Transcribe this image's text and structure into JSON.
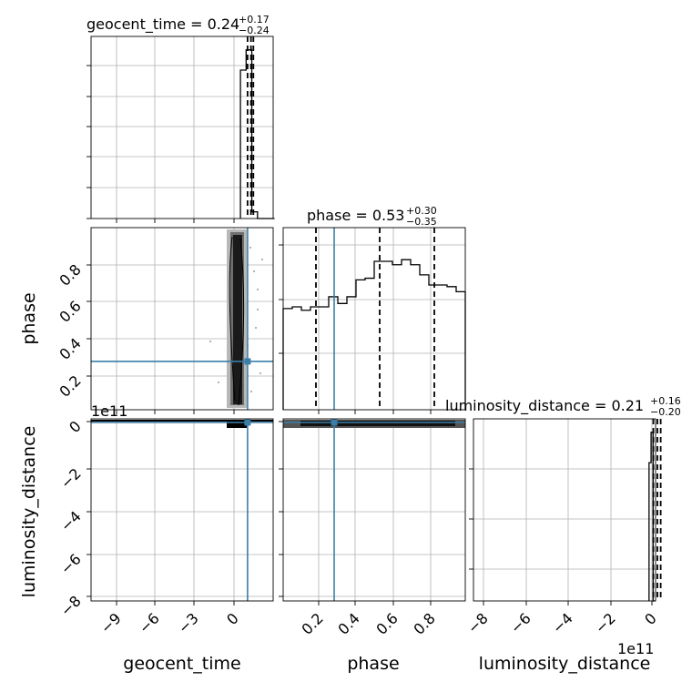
{
  "titles": {
    "geocent_time": {
      "main": "geocent_time = 0.24",
      "sup": "+0.17",
      "sub": "−0.24"
    },
    "phase": {
      "main": "phase = 0.53",
      "sup": "+0.30",
      "sub": "−0.35"
    },
    "luminosity_distance": {
      "main": "luminosity_distance = 0.21",
      "sup": "+0.16",
      "sub": "−0.20"
    }
  },
  "axis_labels": {
    "geocent_time": "geocent_time",
    "phase": "phase",
    "luminosity_distance": "luminosity_distance"
  },
  "offset_texts": {
    "row3_y": "1e11",
    "col3_x": "1e11"
  },
  "colors": {
    "truth": "#3b7ea8",
    "hist": "#000000",
    "grid": "#b0b0b0",
    "density_dark": "#1a1a1a",
    "density_mid": "#6e6e6e",
    "density_light": "#b8b8b8"
  },
  "chart_data": [
    {
      "type": "bar",
      "panel": "geocent_time marginal histogram",
      "x": [
        -0.5,
        -0.1,
        0.3,
        0.7,
        1.1,
        1.5
      ],
      "values": [
        0.88,
        1.0,
        0.04,
        0.0,
        0.0,
        0.0
      ],
      "quantiles": [
        0.0,
        0.24,
        0.41
      ],
      "xlim": [
        -11,
        1.8
      ]
    },
    {
      "type": "bar",
      "panel": "phase marginal histogram",
      "x": [
        0.0,
        0.05,
        0.1,
        0.15,
        0.2,
        0.25,
        0.3,
        0.35,
        0.4,
        0.45,
        0.5,
        0.55,
        0.6,
        0.65,
        0.7,
        0.75,
        0.8,
        0.85,
        0.9,
        0.95
      ],
      "values": [
        0.6,
        0.61,
        0.59,
        0.61,
        0.61,
        0.67,
        0.63,
        0.67,
        0.77,
        0.78,
        0.88,
        0.88,
        0.86,
        0.89,
        0.86,
        0.8,
        0.74,
        0.74,
        0.73,
        0.7
      ],
      "quantiles": [
        0.18,
        0.53,
        0.83
      ],
      "truth": 0.28,
      "xlim": [
        0.0,
        1.0
      ],
      "xticks": [
        "0.2",
        "0.4",
        "0.6",
        "0.8"
      ]
    },
    {
      "type": "bar",
      "panel": "luminosity_distance marginal histogram",
      "x": [
        -0.2,
        -0.1,
        0.0
      ],
      "values": [
        0.82,
        1.0,
        0.0
      ],
      "quantiles": [
        0.01,
        0.21,
        0.37
      ],
      "xlim": [
        -8.8,
        0.12
      ],
      "xticks": [
        "−8",
        "−6",
        "−4",
        "−2",
        "0"
      ]
    },
    {
      "type": "heatmap",
      "panel": "geocent_time vs phase",
      "xlim": [
        -11,
        1.8
      ],
      "ylim": [
        0.02,
        1.0
      ],
      "truth": {
        "x": 0.0,
        "y": 0.28
      },
      "yticks": [
        "0.2",
        "0.4",
        "0.6",
        "0.8"
      ]
    },
    {
      "type": "heatmap",
      "panel": "geocent_time vs luminosity_distance",
      "xlim": [
        -11,
        1.8
      ],
      "ylim": [
        -8.4,
        0.05
      ],
      "truth": {
        "x": 0.0,
        "y": 0.0
      },
      "xticks": [
        "−9",
        "−6",
        "−3",
        "0"
      ],
      "yticks": [
        "0",
        "−2",
        "−4",
        "−6",
        "−8"
      ]
    },
    {
      "type": "heatmap",
      "panel": "phase vs luminosity_distance",
      "xlim": [
        0.0,
        1.0
      ],
      "ylim": [
        -8.4,
        0.05
      ],
      "truth": {
        "x": 0.28,
        "y": 0.0
      }
    }
  ]
}
